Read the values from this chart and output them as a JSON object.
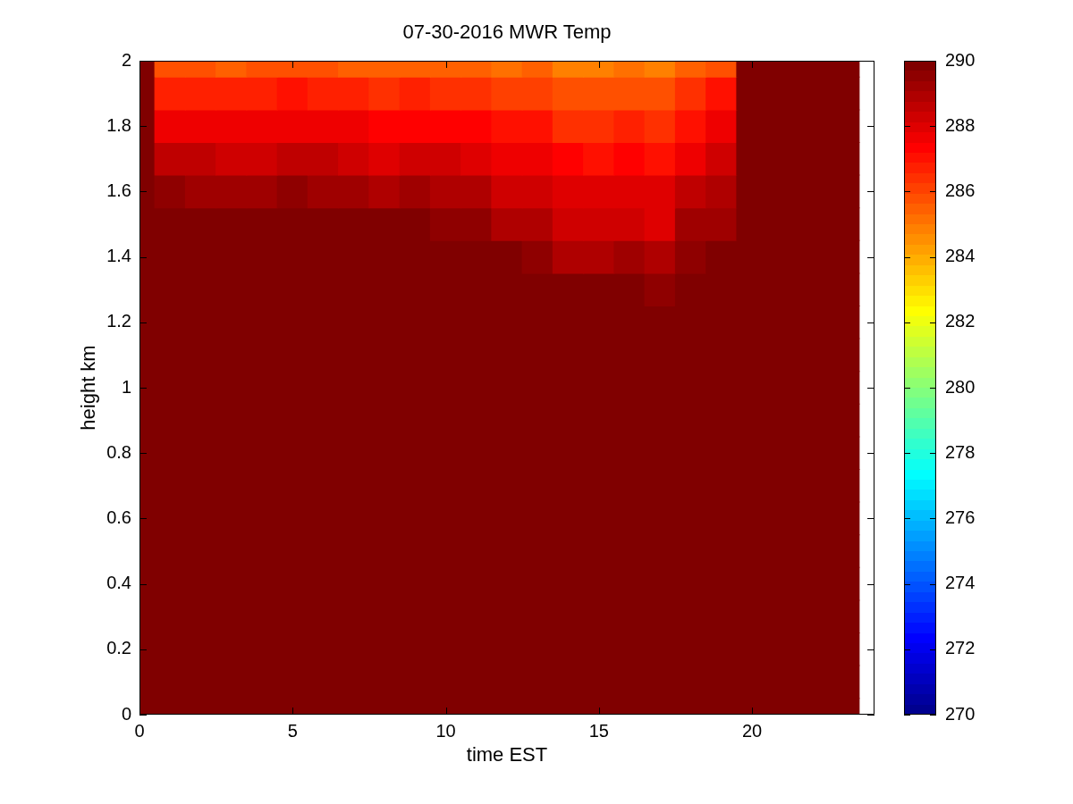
{
  "chart_data": {
    "type": "heatmap",
    "title": "07-30-2016 MWR Temp",
    "xlabel": "time EST",
    "ylabel": "height km",
    "x": [
      0,
      1,
      2,
      3,
      4,
      5,
      6,
      7,
      8,
      9,
      10,
      11,
      12,
      13,
      14,
      15,
      16,
      17,
      18,
      19,
      20,
      21,
      22,
      23
    ],
    "cells": [
      [
        290,
        285.8,
        285.8,
        285.5,
        285.8,
        285.8,
        285.8,
        285.5,
        285.5,
        285.5,
        285.5,
        285.5,
        285.2,
        285.5,
        284.8,
        284.8,
        285.2,
        284.8,
        285.5,
        285.8,
        290,
        290,
        290,
        290
      ],
      [
        290,
        286.7,
        286.7,
        286.7,
        286.7,
        287,
        286.7,
        286.7,
        286.4,
        286.7,
        286.4,
        286.4,
        286.1,
        286.1,
        285.8,
        285.8,
        285.8,
        285.8,
        286.4,
        287,
        290,
        290,
        290,
        290
      ],
      [
        290,
        287.7,
        287.7,
        287.7,
        287.7,
        287.7,
        287.7,
        287.7,
        287.3,
        287.3,
        287.3,
        287.3,
        287,
        287,
        286.4,
        286.4,
        286.7,
        286.4,
        287,
        287.7,
        290,
        290,
        290,
        290
      ],
      [
        290,
        288.6,
        288.6,
        288.3,
        288.3,
        288.6,
        288.6,
        288.3,
        288,
        288.3,
        288.3,
        288,
        287.7,
        287.7,
        287.3,
        287,
        287.3,
        287,
        287.7,
        288.3,
        290,
        290,
        290,
        290
      ],
      [
        290,
        289.5,
        289.2,
        289.2,
        289.2,
        289.5,
        289.2,
        289.2,
        288.9,
        289.2,
        288.9,
        288.9,
        288.3,
        288.3,
        288,
        288,
        288,
        288,
        288.6,
        288.9,
        290,
        290,
        290,
        290
      ],
      [
        290,
        290,
        290,
        290,
        290,
        290,
        290,
        290,
        290,
        290,
        289.5,
        289.5,
        288.9,
        288.9,
        288.3,
        288.3,
        288.3,
        288,
        289.2,
        289.2,
        290,
        290,
        290,
        290
      ],
      [
        290,
        290,
        290,
        290,
        290,
        290,
        290,
        290,
        290,
        290,
        290,
        290,
        290,
        289.5,
        288.9,
        288.9,
        289.2,
        288.9,
        289.5,
        290,
        290,
        290,
        290,
        290
      ],
      [
        290,
        290,
        290,
        290,
        290,
        290,
        290,
        290,
        290,
        290,
        290,
        290,
        290,
        290,
        290,
        290,
        290,
        289.5,
        290,
        290,
        290,
        290,
        290,
        290
      ],
      [
        290,
        290,
        290,
        290,
        290,
        290,
        290,
        290,
        290,
        290,
        290,
        290,
        290,
        290,
        290,
        290,
        290,
        290,
        290,
        290,
        290,
        290,
        290,
        290
      ],
      [
        290,
        290,
        290,
        290,
        290,
        290,
        290,
        290,
        290,
        290,
        290,
        290,
        290,
        290,
        290,
        290,
        290,
        290,
        290,
        290,
        290,
        290,
        290,
        290
      ],
      [
        290,
        290,
        290,
        290,
        290,
        290,
        290,
        290,
        290,
        290,
        290,
        290,
        290,
        290,
        290,
        290,
        290,
        290,
        290,
        290,
        290,
        290,
        290,
        290
      ],
      [
        290,
        290,
        290,
        290,
        290,
        290,
        290,
        290,
        290,
        290,
        290,
        290,
        290,
        290,
        290,
        290,
        290,
        290,
        290,
        290,
        290,
        290,
        290,
        290
      ],
      [
        290,
        290,
        290,
        290,
        290,
        290,
        290,
        290,
        290,
        290,
        290,
        290,
        290,
        290,
        290,
        290,
        290,
        290,
        290,
        290,
        290,
        290,
        290,
        290
      ],
      [
        290,
        290,
        290,
        290,
        290,
        290,
        290,
        290,
        290,
        290,
        290,
        290,
        290,
        290,
        290,
        290,
        290,
        290,
        290,
        290,
        290,
        290,
        290,
        290
      ],
      [
        290,
        290,
        290,
        290,
        290,
        290,
        290,
        290,
        290,
        290,
        290,
        290,
        290,
        290,
        290,
        290,
        290,
        290,
        290,
        290,
        290,
        290,
        290,
        290
      ],
      [
        290,
        290,
        290,
        290,
        290,
        290,
        290,
        290,
        290,
        290,
        290,
        290,
        290,
        290,
        290,
        290,
        290,
        290,
        290,
        290,
        290,
        290,
        290,
        290
      ],
      [
        290,
        290,
        290,
        290,
        290,
        290,
        290,
        290,
        290,
        290,
        290,
        290,
        290,
        290,
        290,
        290,
        290,
        290,
        290,
        290,
        290,
        290,
        290,
        290
      ],
      [
        290,
        290,
        290,
        290,
        290,
        290,
        290,
        290,
        290,
        290,
        290,
        290,
        290,
        290,
        290,
        290,
        290,
        290,
        290,
        290,
        290,
        290,
        290,
        290
      ],
      [
        290,
        290,
        290,
        290,
        290,
        290,
        290,
        290,
        290,
        290,
        290,
        290,
        290,
        290,
        290,
        290,
        290,
        290,
        290,
        290,
        290,
        290,
        290,
        290
      ],
      [
        290,
        290,
        290,
        290,
        290,
        290,
        290,
        290,
        290,
        290,
        290,
        290,
        290,
        290,
        290,
        290,
        290,
        290,
        290,
        290,
        290,
        290,
        290,
        290
      ],
      [
        290,
        290,
        290,
        290,
        290,
        290,
        290,
        290,
        290,
        290,
        290,
        290,
        290,
        290,
        290,
        290,
        290,
        290,
        290,
        290,
        290,
        290,
        290,
        290
      ]
    ],
    "clim": [
      270,
      290
    ],
    "cticks": [
      270,
      272,
      274,
      276,
      278,
      280,
      282,
      284,
      286,
      288,
      290
    ],
    "xlim": [
      0,
      24
    ],
    "ylim": [
      0,
      2
    ],
    "xticks": [
      0,
      5,
      10,
      15,
      20
    ],
    "yticks": [
      0,
      0.2,
      0.4,
      0.6,
      0.8,
      1,
      1.2,
      1.4,
      1.6,
      1.8,
      2
    ]
  }
}
